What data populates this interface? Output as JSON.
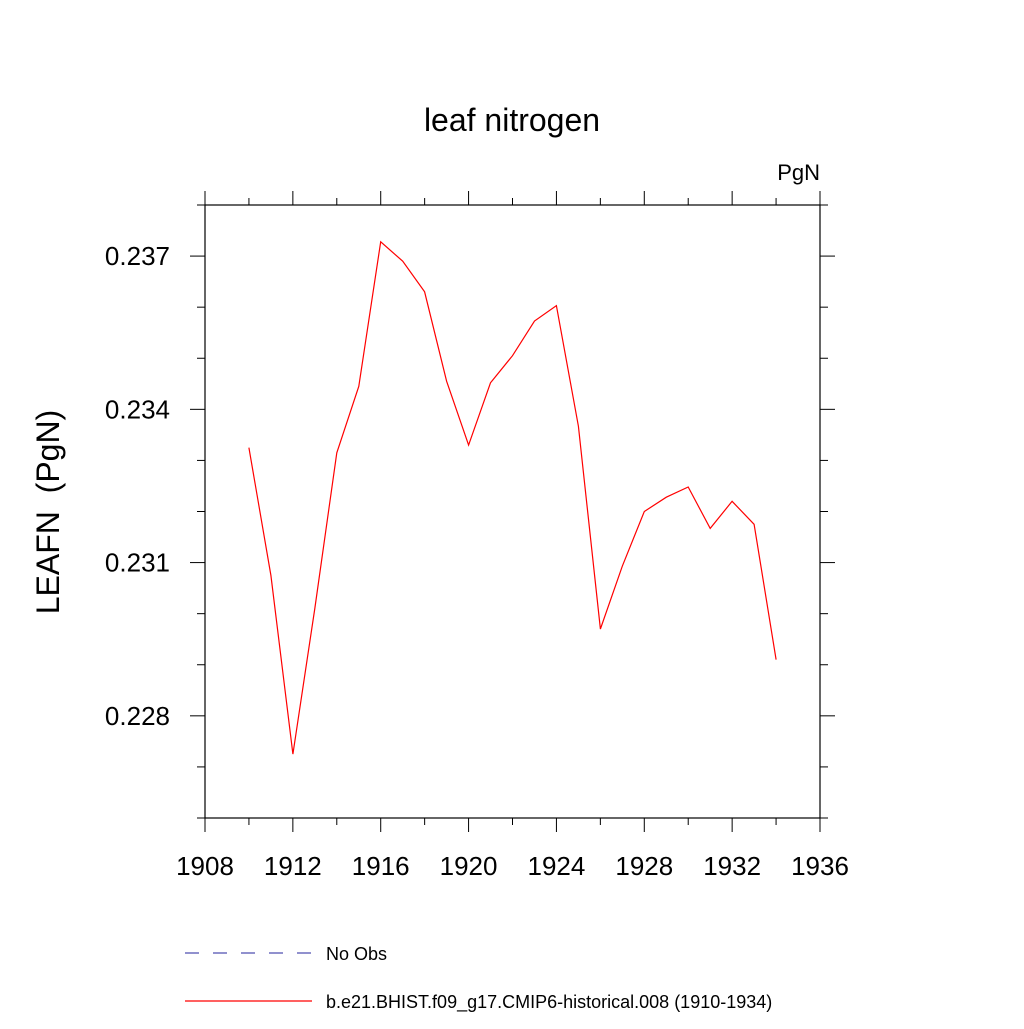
{
  "chart_data": {
    "type": "line",
    "title": "leaf nitrogen",
    "units_label": "PgN",
    "xlabel": "",
    "ylabel": "LEAFN  (PgN)",
    "xlim": [
      1908,
      1936
    ],
    "ylim": [
      0.226,
      0.238
    ],
    "x_ticks": [
      "1908",
      "1912",
      "1916",
      "1920",
      "1924",
      "1928",
      "1932",
      "1936"
    ],
    "y_ticks": [
      "0.228",
      "0.231",
      "0.234",
      "0.237"
    ],
    "grid": false,
    "legend_placement": "bottom",
    "series": [
      {
        "name": "No Obs",
        "color": "#4f4fb0",
        "dash": "dashed",
        "x": [],
        "y": []
      },
      {
        "name": "b.e21.BHIST.f09_g17.CMIP6-historical.008 (1910-1934)",
        "color": "#ff0000",
        "dash": "solid",
        "x": [
          1910,
          1911,
          1912,
          1913,
          1914,
          1915,
          1916,
          1917,
          1918,
          1919,
          1920,
          1921,
          1922,
          1923,
          1924,
          1925,
          1926,
          1927,
          1928,
          1929,
          1930,
          1931,
          1932,
          1933,
          1934
        ],
        "y": [
          0.23325,
          0.23075,
          0.22725,
          0.2301,
          0.23315,
          0.23445,
          0.23728,
          0.2369,
          0.2363,
          0.23455,
          0.2333,
          0.23452,
          0.23505,
          0.23573,
          0.23603,
          0.23367,
          0.2297,
          0.23093,
          0.232,
          0.23228,
          0.23248,
          0.23167,
          0.2322,
          0.23175,
          0.2291
        ]
      }
    ]
  }
}
